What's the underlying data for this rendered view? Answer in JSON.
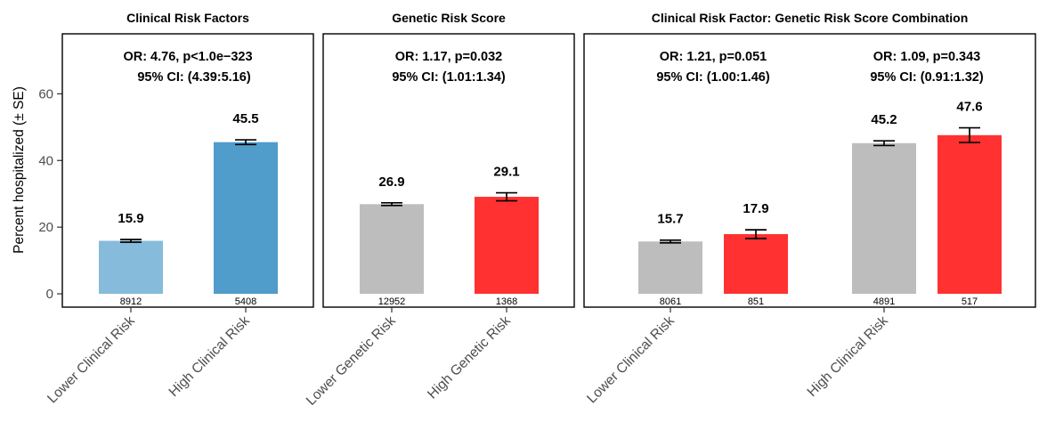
{
  "chart_data": {
    "type": "bar",
    "ylabel": "Percent hospitalized (± SE)",
    "ylim": [
      -4,
      78
    ],
    "yticks": [
      0,
      20,
      40,
      60
    ],
    "panels": [
      {
        "title": "Clinical Risk Factors",
        "stats": [
          {
            "line1": "OR: 4.76, p<1.0e−323",
            "line2": "95% CI: (4.39:5.16)"
          }
        ],
        "bars": [
          {
            "category": "Lower Clinical Risk",
            "value": 15.9,
            "se": 0.4,
            "n": "8912",
            "label": "15.9",
            "color": "#86bbdb"
          },
          {
            "category": "High Clinical Risk",
            "value": 45.5,
            "se": 0.7,
            "n": "5408",
            "label": "45.5",
            "color": "#509ccb"
          }
        ],
        "xticks": [
          "Lower Clinical Risk",
          "High Clinical Risk"
        ]
      },
      {
        "title": "Genetic Risk Score",
        "stats": [
          {
            "line1": "OR: 1.17, p=0.032",
            "line2": "95% CI: (1.01:1.34)"
          }
        ],
        "bars": [
          {
            "category": "Lower Genetic Risk",
            "value": 26.9,
            "se": 0.4,
            "n": "12952",
            "label": "26.9",
            "color": "#bdbdbd"
          },
          {
            "category": "High Genetic Risk",
            "value": 29.1,
            "se": 1.2,
            "n": "1368",
            "label": "29.1",
            "color": "#ff3131"
          }
        ],
        "xticks": [
          "Lower Genetic Risk",
          "High Genetic Risk"
        ]
      },
      {
        "title": "Clinical Risk Factor: Genetic Risk Score Combination",
        "stats": [
          {
            "line1": "OR: 1.21, p=0.051",
            "line2": "95% CI: (1.00:1.46)"
          },
          {
            "line1": "OR: 1.09, p=0.343",
            "line2": "95% CI: (0.91:1.32)"
          }
        ],
        "bars": [
          {
            "category": "Lower Clinical Risk",
            "value": 15.7,
            "se": 0.4,
            "n": "8061",
            "label": "15.7",
            "color": "#bdbdbd"
          },
          {
            "category": "Lower Clinical Risk",
            "value": 17.9,
            "se": 1.3,
            "n": "851",
            "label": "17.9",
            "color": "#ff3131"
          },
          {
            "category": "High Clinical Risk",
            "value": 45.2,
            "se": 0.7,
            "n": "4891",
            "label": "45.2",
            "color": "#bdbdbd"
          },
          {
            "category": "High Clinical Risk",
            "value": 47.6,
            "se": 2.2,
            "n": "517",
            "label": "47.6",
            "color": "#ff3131"
          }
        ],
        "xticks": [
          "Lower Clinical Risk",
          "High Clinical Risk"
        ]
      }
    ]
  }
}
